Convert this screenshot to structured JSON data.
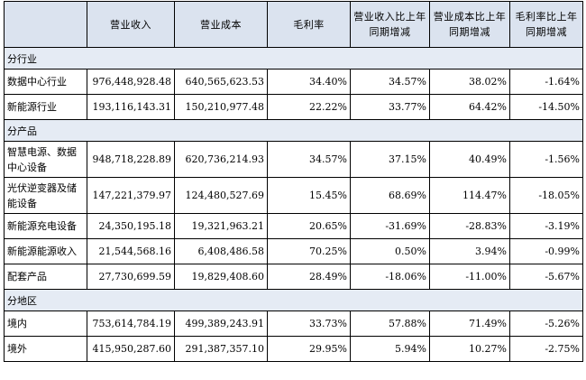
{
  "headers": [
    "",
    "营业收入",
    "营业成本",
    "毛利率",
    "营业收入比上年同期增减",
    "营业成本比上年同期增减",
    "毛利率比上年同期增减"
  ],
  "sections": [
    {
      "title": "分行业",
      "rows": [
        {
          "label": "数据中心行业",
          "revenue": "976,448,928.48",
          "cost": "640,565,623.53",
          "margin": "34.40%",
          "rev_change": "34.57%",
          "cost_change": "38.02%",
          "margin_change": "-1.64%"
        },
        {
          "label": "新能源行业",
          "revenue": "193,116,143.31",
          "cost": "150,210,977.48",
          "margin": "22.22%",
          "rev_change": "33.77%",
          "cost_change": "64.42%",
          "margin_change": "-14.50%"
        }
      ]
    },
    {
      "title": "分产品",
      "rows": [
        {
          "label": "智慧电源、数据中心设备",
          "revenue": "948,718,228.89",
          "cost": "620,736,214.93",
          "margin": "34.57%",
          "rev_change": "37.15%",
          "cost_change": "40.49%",
          "margin_change": "-1.56%"
        },
        {
          "label": "光伏逆变器及储能设备",
          "revenue": "147,221,379.97",
          "cost": "124,480,527.69",
          "margin": "15.45%",
          "rev_change": "68.69%",
          "cost_change": "114.47%",
          "margin_change": "-18.05%"
        },
        {
          "label": "新能源充电设备",
          "revenue": "24,350,195.18",
          "cost": "19,321,963.21",
          "margin": "20.65%",
          "rev_change": "-31.69%",
          "cost_change": "-28.83%",
          "margin_change": "-3.19%"
        },
        {
          "label": "新能源能源收入",
          "revenue": "21,544,568.16",
          "cost": "6,408,486.58",
          "margin": "70.25%",
          "rev_change": "0.50%",
          "cost_change": "3.94%",
          "margin_change": "-0.99%"
        },
        {
          "label": "配套产品",
          "revenue": "27,730,699.59",
          "cost": "19,829,408.60",
          "margin": "28.49%",
          "rev_change": "-18.06%",
          "cost_change": "-11.00%",
          "margin_change": "-5.67%"
        }
      ]
    },
    {
      "title": "分地区",
      "rows": [
        {
          "label": "境内",
          "revenue": "753,614,784.19",
          "cost": "499,389,243.91",
          "margin": "33.73%",
          "rev_change": "57.88%",
          "cost_change": "71.49%",
          "margin_change": "-5.26%"
        },
        {
          "label": "境外",
          "revenue": "415,950,287.60",
          "cost": "291,387,357.10",
          "margin": "29.95%",
          "rev_change": "5.94%",
          "cost_change": "10.27%",
          "margin_change": "-2.75%"
        }
      ]
    }
  ]
}
